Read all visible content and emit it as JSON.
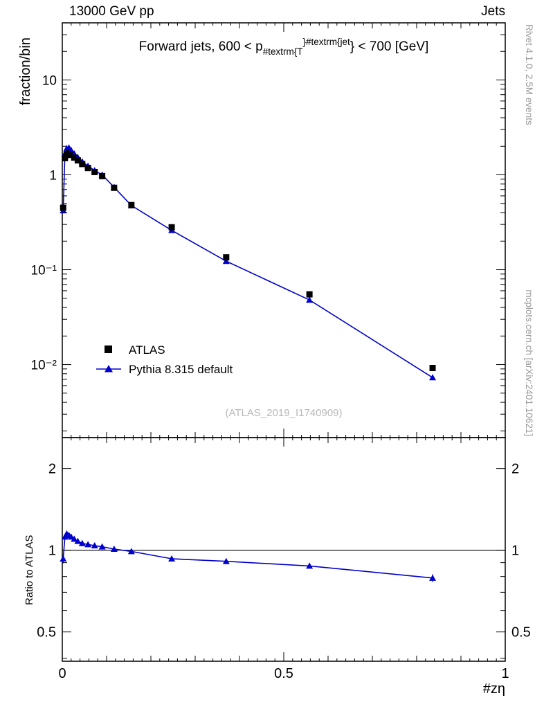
{
  "header": {
    "left": "13000 GeV pp",
    "right": "Jets"
  },
  "titles": {
    "main_pre": "Forward jets, 600 < p",
    "main_sub": "#textrm{T",
    "main_sup": "}#textrm{jet",
    "main_post": "} < 700 [GeV]",
    "ylabel_main": "fraction/bin",
    "ylabel_ratio": "Ratio to ATLAS",
    "xlabel": "#zη",
    "watermark": "(ATLAS_2019_I1740909)"
  },
  "side_notes": {
    "top_right": "Rivet 4.1.0,  2.5M events",
    "bottom_right": "mcplots.cern.ch [arXiv:2401.10621]"
  },
  "chart_data": {
    "type": "line",
    "title": "Forward jets, 600 < p_{#textrm{T}}^{#textrm{jet}} < 700 [GeV]",
    "xlabel": "#zη",
    "ylabel": "fraction/bin",
    "ratio_label": "Ratio to ATLAS",
    "y_scale": "log",
    "x_range": [
      0,
      1
    ],
    "y_range_main": [
      0.0017,
      40
    ],
    "y_range_ratio": [
      0.39,
      2.6
    ],
    "legend_position": "left-middle",
    "x": [
      0.002,
      0.006,
      0.01,
      0.015,
      0.02,
      0.027,
      0.035,
      0.045,
      0.058,
      0.073,
      0.09,
      0.117,
      0.156,
      0.247,
      0.37,
      0.558,
      0.836
    ],
    "series": [
      {
        "name": "ATLAS",
        "marker": "square",
        "color": "#000000",
        "values": [
          0.45,
          1.5,
          1.65,
          1.7,
          1.62,
          1.52,
          1.42,
          1.3,
          1.18,
          1.07,
          0.97,
          0.73,
          0.48,
          0.28,
          0.135,
          0.055,
          0.0092
        ],
        "errors": [
          0.03,
          0.04,
          0.04,
          0.04,
          0.04,
          0.035,
          0.03,
          0.028,
          0.025,
          0.022,
          0.02,
          0.015,
          0.011,
          0.007,
          0.0035,
          0.0016,
          0.0004
        ]
      },
      {
        "name": "Pythia 8.315 default",
        "marker": "triangle",
        "color": "#0000cc",
        "line": true,
        "values": [
          0.42,
          1.68,
          1.9,
          1.93,
          1.82,
          1.67,
          1.53,
          1.38,
          1.24,
          1.11,
          1.0,
          0.74,
          0.475,
          0.26,
          0.123,
          0.048,
          0.0073
        ],
        "errors": [
          0.01,
          0.012,
          0.012,
          0.012,
          0.011,
          0.01,
          0.009,
          0.008,
          0.008,
          0.007,
          0.006,
          0.005,
          0.004,
          0.003,
          0.0015,
          0.0008,
          0.0002
        ]
      }
    ],
    "ratio": {
      "values": [
        0.93,
        1.12,
        1.15,
        1.135,
        1.12,
        1.1,
        1.08,
        1.06,
        1.05,
        1.04,
        1.03,
        1.01,
        0.99,
        0.93,
        0.91,
        0.875,
        0.79
      ],
      "errors": [
        0.035,
        0.02,
        0.016,
        0.013,
        0.011,
        0.01,
        0.009,
        0.008,
        0.008,
        0.007,
        0.007,
        0.008,
        0.008,
        0.009,
        0.01,
        0.012,
        0.025
      ]
    },
    "xticks": [
      {
        "v": 0,
        "label": "0"
      },
      {
        "v": 0.5,
        "label": "0.5"
      },
      {
        "v": 1,
        "label": "1"
      }
    ],
    "yticks_main": [
      {
        "v": 10,
        "label": "10"
      },
      {
        "v": 1,
        "label": "1"
      },
      {
        "v": 0.1,
        "label": "10⁻¹"
      },
      {
        "v": 0.01,
        "label": "10⁻²"
      }
    ],
    "yticks_ratio": [
      {
        "v": 2,
        "label": "2"
      },
      {
        "v": 1,
        "label": "1"
      },
      {
        "v": 0.5,
        "label": "0.5"
      }
    ],
    "yticks_ratio_minor": [
      0.4,
      0.6,
      0.7,
      0.8,
      0.9
    ]
  }
}
